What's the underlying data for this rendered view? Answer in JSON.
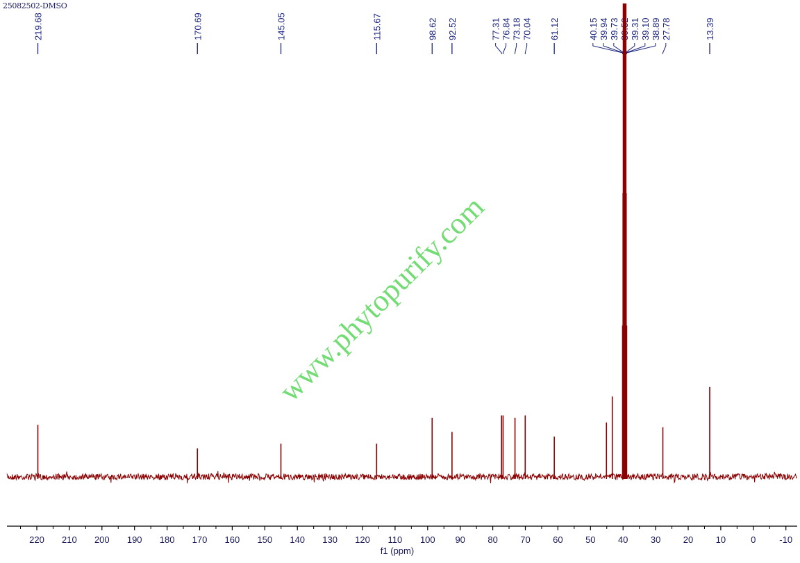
{
  "chart_data": {
    "type": "line",
    "title": "25082502-DMSO",
    "xlabel": "f1 (ppm)",
    "ylabel": "",
    "xlim": [
      229,
      -13.5
    ],
    "x_reversed": true,
    "x_ticks": [
      220,
      210,
      200,
      190,
      180,
      170,
      160,
      150,
      140,
      130,
      120,
      110,
      100,
      90,
      80,
      70,
      60,
      50,
      40,
      30,
      20,
      10,
      0,
      -10
    ],
    "grid": false,
    "colors": {
      "spectrum": "#8b0000",
      "labels": "#1a237e",
      "axis": "#000000",
      "watermark": "#5cd65c"
    },
    "peak_labels": [
      "219.68",
      "170.69",
      "145.05",
      "115.67",
      "98.62",
      "92.52",
      "77.31",
      "76.84",
      "73.18",
      "70.04",
      "61.12",
      "40.15",
      "39.94",
      "39.73",
      "39.52",
      "39.31",
      "39.10",
      "38.89",
      "27.78",
      "13.39"
    ],
    "peaks": [
      {
        "ppm": 219.68,
        "intensity": 0.11
      },
      {
        "ppm": 170.69,
        "intensity": 0.06
      },
      {
        "ppm": 145.05,
        "intensity": 0.07
      },
      {
        "ppm": 115.67,
        "intensity": 0.07
      },
      {
        "ppm": 98.62,
        "intensity": 0.125
      },
      {
        "ppm": 92.52,
        "intensity": 0.095
      },
      {
        "ppm": 77.31,
        "intensity": 0.13
      },
      {
        "ppm": 76.84,
        "intensity": 0.13
      },
      {
        "ppm": 73.18,
        "intensity": 0.125
      },
      {
        "ppm": 70.04,
        "intensity": 0.13
      },
      {
        "ppm": 61.12,
        "intensity": 0.085
      },
      {
        "ppm": 45.1,
        "intensity": 0.115
      },
      {
        "ppm": 43.3,
        "intensity": 0.17
      },
      {
        "ppm": 40.15,
        "intensity": 0.32
      },
      {
        "ppm": 39.94,
        "intensity": 0.6
      },
      {
        "ppm": 39.73,
        "intensity": 0.95
      },
      {
        "ppm": 39.52,
        "intensity": 1.0
      },
      {
        "ppm": 39.31,
        "intensity": 0.95
      },
      {
        "ppm": 39.1,
        "intensity": 0.6
      },
      {
        "ppm": 38.89,
        "intensity": 0.32
      },
      {
        "ppm": 27.78,
        "intensity": 0.105
      },
      {
        "ppm": 13.39,
        "intensity": 0.19
      }
    ]
  },
  "watermark": "www.phytopurify.com"
}
